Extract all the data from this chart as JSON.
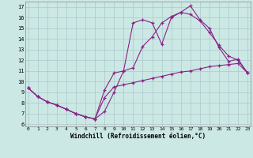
{
  "xlabel": "Windchill (Refroidissement éolien,°C)",
  "bg_color": "#cce8e4",
  "grid_color": "#aac8cc",
  "line_color": "#882288",
  "xlim_min": -0.3,
  "xlim_max": 23.3,
  "ylim_min": 5.8,
  "ylim_max": 17.5,
  "xticks": [
    0,
    1,
    2,
    3,
    4,
    5,
    6,
    7,
    8,
    9,
    10,
    11,
    12,
    13,
    14,
    15,
    16,
    17,
    18,
    19,
    20,
    21,
    22,
    23
  ],
  "yticks": [
    6,
    7,
    8,
    9,
    10,
    11,
    12,
    13,
    14,
    15,
    16,
    17
  ],
  "line1_x": [
    0,
    1,
    2,
    3,
    4,
    5,
    6,
    7,
    8,
    9,
    10,
    11,
    12,
    13,
    14,
    15,
    16,
    17,
    18,
    19,
    20,
    21,
    22,
    23
  ],
  "line1_y": [
    9.4,
    8.6,
    8.1,
    7.8,
    7.4,
    7.0,
    6.7,
    6.5,
    7.2,
    9.0,
    11.0,
    15.5,
    15.8,
    15.5,
    13.5,
    16.0,
    16.5,
    17.1,
    15.8,
    15.0,
    13.2,
    11.9,
    12.1,
    10.8
  ],
  "line2_x": [
    0,
    1,
    2,
    3,
    4,
    5,
    6,
    7,
    8,
    9,
    10,
    11,
    12,
    13,
    14,
    15,
    16,
    17,
    18,
    19,
    20,
    21,
    22,
    23
  ],
  "line2_y": [
    9.4,
    8.6,
    8.1,
    7.8,
    7.4,
    7.0,
    6.7,
    6.5,
    8.5,
    9.5,
    9.7,
    9.9,
    10.1,
    10.3,
    10.5,
    10.7,
    10.9,
    11.0,
    11.2,
    11.4,
    11.5,
    11.6,
    11.7,
    10.8
  ],
  "line3_x": [
    0,
    1,
    2,
    3,
    4,
    5,
    6,
    7,
    8,
    9,
    10,
    11,
    12,
    13,
    14,
    15,
    16,
    17,
    18,
    19,
    20,
    21,
    22,
    23
  ],
  "line3_y": [
    9.4,
    8.6,
    8.1,
    7.8,
    7.4,
    7.0,
    6.7,
    6.5,
    9.2,
    10.8,
    11.0,
    11.3,
    13.3,
    14.2,
    15.5,
    16.1,
    16.5,
    16.3,
    15.7,
    14.6,
    13.4,
    12.4,
    12.0,
    10.8
  ]
}
